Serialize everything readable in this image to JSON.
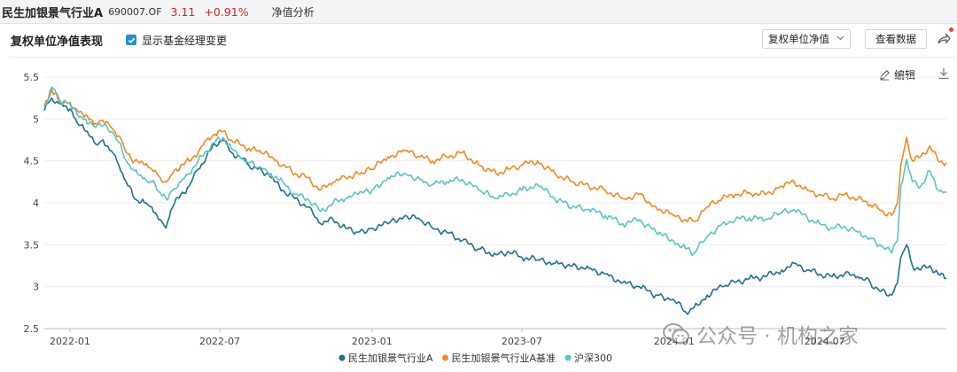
{
  "header": {
    "fund_name": "民生加银景气行业A",
    "fund_code": "690007.OF",
    "price": "3.11",
    "change": "+0.91%",
    "tab_label": "净值分析"
  },
  "toolbar": {
    "title": "复权单位净值表现",
    "manager_change_label": "显示基金经理变更",
    "dropdown_value": "复权单位净值",
    "data_button_label": "查看数据",
    "edit_label": "编辑"
  },
  "icons": {
    "share": "share-icon",
    "edit": "pencil-icon",
    "download": "download-icon",
    "checkbox": "checkmark-icon",
    "watermark": "wechat-icon"
  },
  "watermark": {
    "text": "公众号 · 机构之家"
  },
  "colors": {
    "fund": "#1f6f94",
    "benchmark": "#f5891f",
    "csi300": "#5bc3c6",
    "price_up": "#e02020",
    "accent": "#2b8fd6"
  },
  "chart_data": {
    "type": "line",
    "title": "",
    "xlabel": "",
    "ylabel": "",
    "ylim": [
      2.5,
      5.5
    ],
    "yticks": [
      "2.5",
      "3",
      "3.5",
      "4",
      "4.5",
      "5",
      "5.5"
    ],
    "xlim": [
      "2021-12-01",
      "2024-11-25"
    ],
    "xticks": [
      "2022-01",
      "2022-07",
      "2023-01",
      "2023-07",
      "2024-01",
      "2024-07"
    ],
    "grid": "horizontal",
    "legend_position": "bottom",
    "series": [
      {
        "name": "民生加银景气行业A",
        "color": "#1f6f94",
        "points": [
          [
            "2021-12-01",
            5.1
          ],
          [
            "2021-12-10",
            5.25
          ],
          [
            "2021-12-20",
            5.18
          ],
          [
            "2022-01-01",
            5.12
          ],
          [
            "2022-01-10",
            4.95
          ],
          [
            "2022-01-20",
            4.85
          ],
          [
            "2022-02-01",
            4.7
          ],
          [
            "2022-02-10",
            4.75
          ],
          [
            "2022-02-20",
            4.62
          ],
          [
            "2022-03-01",
            4.45
          ],
          [
            "2022-03-10",
            4.25
          ],
          [
            "2022-03-20",
            4.05
          ],
          [
            "2022-04-01",
            4.0
          ],
          [
            "2022-04-10",
            3.95
          ],
          [
            "2022-04-20",
            3.8
          ],
          [
            "2022-04-27",
            3.7
          ],
          [
            "2022-05-05",
            3.95
          ],
          [
            "2022-05-15",
            4.1
          ],
          [
            "2022-05-25",
            4.2
          ],
          [
            "2022-06-05",
            4.4
          ],
          [
            "2022-06-15",
            4.55
          ],
          [
            "2022-06-25",
            4.7
          ],
          [
            "2022-07-05",
            4.75
          ],
          [
            "2022-07-15",
            4.6
          ],
          [
            "2022-07-25",
            4.55
          ],
          [
            "2022-08-05",
            4.45
          ],
          [
            "2022-08-20",
            4.4
          ],
          [
            "2022-09-01",
            4.3
          ],
          [
            "2022-09-15",
            4.15
          ],
          [
            "2022-09-30",
            4.05
          ],
          [
            "2022-10-15",
            3.95
          ],
          [
            "2022-10-31",
            3.75
          ],
          [
            "2022-11-15",
            3.8
          ],
          [
            "2022-11-30",
            3.7
          ],
          [
            "2022-12-15",
            3.65
          ],
          [
            "2023-01-01",
            3.7
          ],
          [
            "2023-01-20",
            3.75
          ],
          [
            "2023-02-10",
            3.85
          ],
          [
            "2023-02-28",
            3.8
          ],
          [
            "2023-03-15",
            3.7
          ],
          [
            "2023-04-01",
            3.65
          ],
          [
            "2023-04-20",
            3.55
          ],
          [
            "2023-05-10",
            3.45
          ],
          [
            "2023-05-31",
            3.38
          ],
          [
            "2023-06-15",
            3.42
          ],
          [
            "2023-07-01",
            3.35
          ],
          [
            "2023-07-20",
            3.32
          ],
          [
            "2023-08-10",
            3.28
          ],
          [
            "2023-08-31",
            3.25
          ],
          [
            "2023-09-20",
            3.22
          ],
          [
            "2023-10-10",
            3.15
          ],
          [
            "2023-10-31",
            3.05
          ],
          [
            "2023-11-20",
            3.0
          ],
          [
            "2023-12-10",
            2.9
          ],
          [
            "2023-12-31",
            2.85
          ],
          [
            "2024-01-15",
            2.7
          ],
          [
            "2024-01-25",
            2.75
          ],
          [
            "2024-02-10",
            2.9
          ],
          [
            "2024-02-28",
            3.0
          ],
          [
            "2024-03-15",
            3.05
          ],
          [
            "2024-04-01",
            3.1
          ],
          [
            "2024-04-20",
            3.12
          ],
          [
            "2024-05-10",
            3.2
          ],
          [
            "2024-05-25",
            3.28
          ],
          [
            "2024-06-10",
            3.2
          ],
          [
            "2024-06-25",
            3.15
          ],
          [
            "2024-07-10",
            3.12
          ],
          [
            "2024-07-25",
            3.15
          ],
          [
            "2024-08-10",
            3.12
          ],
          [
            "2024-08-25",
            3.05
          ],
          [
            "2024-09-05",
            2.95
          ],
          [
            "2024-09-20",
            2.9
          ],
          [
            "2024-09-27",
            3.05
          ],
          [
            "2024-10-01",
            3.35
          ],
          [
            "2024-10-08",
            3.5
          ],
          [
            "2024-10-15",
            3.25
          ],
          [
            "2024-10-25",
            3.2
          ],
          [
            "2024-11-05",
            3.25
          ],
          [
            "2024-11-15",
            3.15
          ],
          [
            "2024-11-25",
            3.1
          ]
        ]
      },
      {
        "name": "民生加银景气行业A基准",
        "color": "#f5891f",
        "points": [
          [
            "2021-12-01",
            5.15
          ],
          [
            "2021-12-10",
            5.35
          ],
          [
            "2021-12-20",
            5.22
          ],
          [
            "2022-01-01",
            5.2
          ],
          [
            "2022-01-10",
            5.1
          ],
          [
            "2022-01-20",
            5.05
          ],
          [
            "2022-02-01",
            4.95
          ],
          [
            "2022-02-10",
            4.98
          ],
          [
            "2022-02-20",
            4.9
          ],
          [
            "2022-03-01",
            4.8
          ],
          [
            "2022-03-10",
            4.6
          ],
          [
            "2022-03-20",
            4.5
          ],
          [
            "2022-04-01",
            4.45
          ],
          [
            "2022-04-10",
            4.4
          ],
          [
            "2022-04-20",
            4.3
          ],
          [
            "2022-04-27",
            4.25
          ],
          [
            "2022-05-05",
            4.35
          ],
          [
            "2022-05-15",
            4.45
          ],
          [
            "2022-05-25",
            4.5
          ],
          [
            "2022-06-05",
            4.6
          ],
          [
            "2022-06-15",
            4.75
          ],
          [
            "2022-06-25",
            4.82
          ],
          [
            "2022-07-05",
            4.85
          ],
          [
            "2022-07-15",
            4.75
          ],
          [
            "2022-07-25",
            4.7
          ],
          [
            "2022-08-05",
            4.65
          ],
          [
            "2022-08-20",
            4.6
          ],
          [
            "2022-09-01",
            4.55
          ],
          [
            "2022-09-15",
            4.45
          ],
          [
            "2022-09-30",
            4.35
          ],
          [
            "2022-10-15",
            4.3
          ],
          [
            "2022-10-31",
            4.15
          ],
          [
            "2022-11-15",
            4.25
          ],
          [
            "2022-11-30",
            4.3
          ],
          [
            "2022-12-15",
            4.35
          ],
          [
            "2023-01-01",
            4.4
          ],
          [
            "2023-01-20",
            4.55
          ],
          [
            "2023-02-10",
            4.62
          ],
          [
            "2023-02-28",
            4.55
          ],
          [
            "2023-03-15",
            4.5
          ],
          [
            "2023-04-01",
            4.55
          ],
          [
            "2023-04-20",
            4.6
          ],
          [
            "2023-05-10",
            4.45
          ],
          [
            "2023-05-31",
            4.35
          ],
          [
            "2023-06-15",
            4.4
          ],
          [
            "2023-07-01",
            4.45
          ],
          [
            "2023-07-20",
            4.5
          ],
          [
            "2023-08-10",
            4.35
          ],
          [
            "2023-08-31",
            4.25
          ],
          [
            "2023-09-20",
            4.2
          ],
          [
            "2023-10-10",
            4.15
          ],
          [
            "2023-10-31",
            4.05
          ],
          [
            "2023-11-20",
            4.1
          ],
          [
            "2023-12-10",
            3.95
          ],
          [
            "2023-12-31",
            3.85
          ],
          [
            "2024-01-15",
            3.8
          ],
          [
            "2024-01-25",
            3.78
          ],
          [
            "2024-02-10",
            3.95
          ],
          [
            "2024-02-28",
            4.05
          ],
          [
            "2024-03-15",
            4.1
          ],
          [
            "2024-04-01",
            4.12
          ],
          [
            "2024-04-20",
            4.1
          ],
          [
            "2024-05-10",
            4.2
          ],
          [
            "2024-05-25",
            4.25
          ],
          [
            "2024-06-10",
            4.15
          ],
          [
            "2024-06-25",
            4.1
          ],
          [
            "2024-07-10",
            4.05
          ],
          [
            "2024-07-25",
            4.1
          ],
          [
            "2024-08-10",
            4.05
          ],
          [
            "2024-08-25",
            3.98
          ],
          [
            "2024-09-05",
            3.92
          ],
          [
            "2024-09-20",
            3.85
          ],
          [
            "2024-09-27",
            4.0
          ],
          [
            "2024-10-01",
            4.45
          ],
          [
            "2024-10-08",
            4.78
          ],
          [
            "2024-10-15",
            4.5
          ],
          [
            "2024-10-25",
            4.55
          ],
          [
            "2024-11-05",
            4.68
          ],
          [
            "2024-11-15",
            4.5
          ],
          [
            "2024-11-25",
            4.48
          ]
        ]
      },
      {
        "name": "沪深300",
        "color": "#5bc3c6",
        "points": [
          [
            "2021-12-01",
            5.15
          ],
          [
            "2021-12-10",
            5.38
          ],
          [
            "2021-12-20",
            5.2
          ],
          [
            "2022-01-01",
            5.18
          ],
          [
            "2022-01-10",
            5.05
          ],
          [
            "2022-01-20",
            5.0
          ],
          [
            "2022-02-01",
            4.9
          ],
          [
            "2022-02-10",
            4.92
          ],
          [
            "2022-02-20",
            4.85
          ],
          [
            "2022-03-01",
            4.72
          ],
          [
            "2022-03-10",
            4.5
          ],
          [
            "2022-03-20",
            4.38
          ],
          [
            "2022-04-01",
            4.3
          ],
          [
            "2022-04-10",
            4.25
          ],
          [
            "2022-04-20",
            4.12
          ],
          [
            "2022-04-27",
            4.05
          ],
          [
            "2022-05-05",
            4.15
          ],
          [
            "2022-05-15",
            4.25
          ],
          [
            "2022-05-25",
            4.35
          ],
          [
            "2022-06-05",
            4.5
          ],
          [
            "2022-06-15",
            4.62
          ],
          [
            "2022-06-25",
            4.72
          ],
          [
            "2022-07-05",
            4.78
          ],
          [
            "2022-07-15",
            4.65
          ],
          [
            "2022-07-25",
            4.55
          ],
          [
            "2022-08-05",
            4.48
          ],
          [
            "2022-08-20",
            4.42
          ],
          [
            "2022-09-01",
            4.35
          ],
          [
            "2022-09-15",
            4.25
          ],
          [
            "2022-09-30",
            4.1
          ],
          [
            "2022-10-15",
            4.05
          ],
          [
            "2022-10-31",
            3.9
          ],
          [
            "2022-11-15",
            4.0
          ],
          [
            "2022-11-30",
            4.05
          ],
          [
            "2022-12-15",
            4.1
          ],
          [
            "2023-01-01",
            4.15
          ],
          [
            "2023-01-20",
            4.3
          ],
          [
            "2023-02-10",
            4.35
          ],
          [
            "2023-02-28",
            4.28
          ],
          [
            "2023-03-15",
            4.22
          ],
          [
            "2023-04-01",
            4.25
          ],
          [
            "2023-04-20",
            4.28
          ],
          [
            "2023-05-10",
            4.15
          ],
          [
            "2023-05-31",
            4.05
          ],
          [
            "2023-06-15",
            4.1
          ],
          [
            "2023-07-01",
            4.15
          ],
          [
            "2023-07-20",
            4.22
          ],
          [
            "2023-08-10",
            4.05
          ],
          [
            "2023-08-31",
            3.95
          ],
          [
            "2023-09-20",
            3.92
          ],
          [
            "2023-10-10",
            3.85
          ],
          [
            "2023-10-31",
            3.75
          ],
          [
            "2023-11-20",
            3.8
          ],
          [
            "2023-12-10",
            3.65
          ],
          [
            "2023-12-31",
            3.55
          ],
          [
            "2024-01-15",
            3.45
          ],
          [
            "2024-01-25",
            3.4
          ],
          [
            "2024-02-10",
            3.6
          ],
          [
            "2024-02-28",
            3.75
          ],
          [
            "2024-03-15",
            3.8
          ],
          [
            "2024-04-01",
            3.82
          ],
          [
            "2024-04-20",
            3.8
          ],
          [
            "2024-05-10",
            3.88
          ],
          [
            "2024-05-25",
            3.92
          ],
          [
            "2024-06-10",
            3.82
          ],
          [
            "2024-06-25",
            3.75
          ],
          [
            "2024-07-10",
            3.7
          ],
          [
            "2024-07-25",
            3.72
          ],
          [
            "2024-08-10",
            3.65
          ],
          [
            "2024-08-25",
            3.58
          ],
          [
            "2024-09-05",
            3.5
          ],
          [
            "2024-09-20",
            3.4
          ],
          [
            "2024-09-27",
            3.55
          ],
          [
            "2024-10-01",
            4.2
          ],
          [
            "2024-10-08",
            4.52
          ],
          [
            "2024-10-15",
            4.25
          ],
          [
            "2024-10-25",
            4.2
          ],
          [
            "2024-11-05",
            4.38
          ],
          [
            "2024-11-15",
            4.15
          ],
          [
            "2024-11-25",
            4.12
          ]
        ]
      }
    ]
  }
}
